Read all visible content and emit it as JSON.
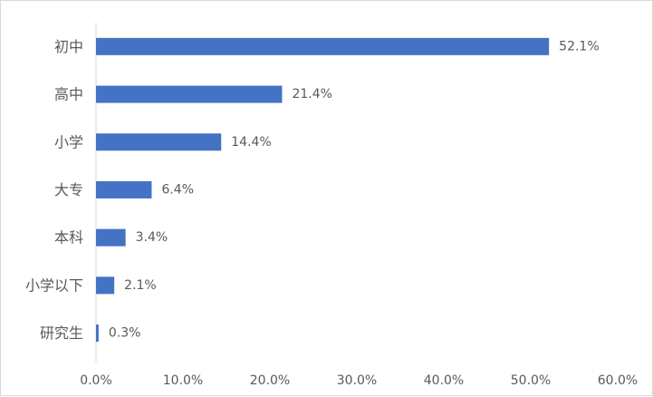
{
  "chart_data": {
    "type": "bar",
    "orientation": "horizontal",
    "categories": [
      "初中",
      "高中",
      "小学",
      "大专",
      "本科",
      "小学以下",
      "研究生"
    ],
    "values": [
      52.1,
      21.4,
      14.4,
      6.4,
      3.4,
      2.1,
      0.3
    ],
    "value_labels": [
      "52.1%",
      "21.4%",
      "14.4%",
      "6.4%",
      "3.4%",
      "2.1%",
      "0.3%"
    ],
    "x_ticks": [
      0,
      10,
      20,
      30,
      40,
      50,
      60
    ],
    "x_tick_labels": [
      "0.0%",
      "10.0%",
      "20.0%",
      "30.0%",
      "40.0%",
      "50.0%",
      "60.0%"
    ],
    "xlim": [
      0,
      60
    ],
    "title": "",
    "xlabel": "",
    "ylabel": "",
    "grid": false,
    "legend": "none",
    "bar_color": "#4472c4",
    "text_color": "#595959",
    "axis_color": "#d9d9d9"
  }
}
